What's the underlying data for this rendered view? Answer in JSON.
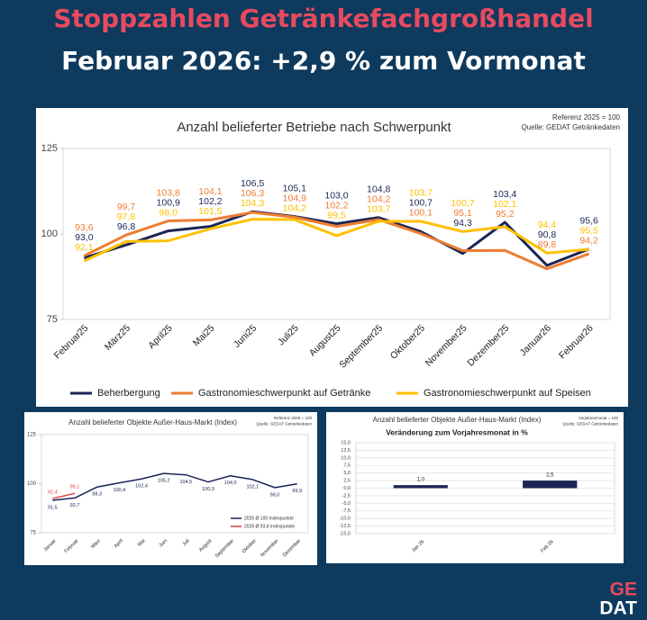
{
  "header": {
    "title": "Stoppzahlen Getränkefachgroßhandel",
    "subtitle": "Februar 2026: +2,9 % zum Vormonat"
  },
  "chart_data": [
    {
      "type": "line",
      "title": "Anzahl belieferter Betriebe nach Schwerpunkt",
      "note": "Referenz 2025 = 100",
      "source": "Quelle: GEDAT Getränkedaten",
      "categories": [
        "Februar25",
        "März25",
        "April25",
        "Mai25",
        "Juni25",
        "Juli25",
        "August25",
        "September25",
        "Oktober25",
        "November25",
        "Dezember25",
        "Januar26",
        "Februar26"
      ],
      "series": [
        {
          "name": "Beherbergung",
          "color": "#1b2556",
          "values": [
            93.0,
            96.8,
            100.9,
            102.2,
            106.5,
            105.1,
            103.0,
            104.8,
            100.7,
            94.3,
            103.4,
            90.8,
            95.6
          ],
          "value_labels": [
            "93,0",
            "96,8",
            "100,9",
            "102,2",
            "106,5",
            "105,1",
            "103,0",
            "104,8",
            "100,7",
            "94,3",
            "103,4",
            "90,8",
            "95,6"
          ]
        },
        {
          "name": "Gastronomieschwerpunkt auf Getränke",
          "color": "#ed7d31",
          "values": [
            93.6,
            99.7,
            103.8,
            104.1,
            106.3,
            104.9,
            102.2,
            104.2,
            100.1,
            95.1,
            95.2,
            89.8,
            94.2
          ],
          "value_labels": [
            "93,6",
            "99,7",
            "103,8",
            "104,1",
            "106,3",
            "104,9",
            "102,2",
            "104,2",
            "100,1",
            "95,1",
            "95,2",
            "89,8",
            "94,2"
          ]
        },
        {
          "name": "Gastronomieschwerpunkt auf Speisen",
          "color": "#ffc000",
          "values": [
            92.1,
            97.8,
            98.0,
            101.5,
            104.3,
            104.2,
            99.5,
            103.7,
            103.7,
            100.7,
            102.1,
            94.4,
            95.5
          ],
          "value_labels": [
            "92,1",
            "97,8",
            "98,0",
            "101,5",
            "104,3",
            "104,2",
            "99,5",
            "103,7",
            "103,7",
            "100,7",
            "102,1",
            "94,4",
            "95,5"
          ]
        }
      ],
      "ylim": [
        75,
        125
      ],
      "yticks": [
        75,
        100,
        125
      ],
      "grid": false,
      "legend": "bottom"
    },
    {
      "type": "line",
      "title": "Anzahl belieferter Objekte Außer-Haus-Markt (Index)",
      "note": "Referenz 2025 = 100",
      "source": "Quelle: GEDAT Getränkedaten",
      "categories": [
        "Januar",
        "Februar",
        "März",
        "April",
        "Mai",
        "Juni",
        "Juli",
        "August",
        "September",
        "Oktober",
        "November",
        "Dezember"
      ],
      "series": [
        {
          "name": "2025 Ø 100 Indexpunkte",
          "color": "#1b2556",
          "values": [
            91.5,
            92.7,
            98.3,
            100.4,
            102.4,
            105.2,
            104.5,
            100.9,
            104.0,
            102.1,
            98.0,
            99.9
          ],
          "value_labels": [
            "91,5",
            "92,7",
            "98,3",
            "100,4",
            "102,4",
            "105,2",
            "104,5",
            "100,9",
            "104,0",
            "102,1",
            "98,0",
            "99,9"
          ]
        },
        {
          "name": "2026 Ø 93,8 Indexpunkte",
          "color": "#e03a3a",
          "values": [
            92.4,
            95.1,
            null,
            null,
            null,
            null,
            null,
            null,
            null,
            null,
            null,
            null
          ],
          "value_labels": [
            "92,4",
            "95,1",
            null,
            null,
            null,
            null,
            null,
            null,
            null,
            null,
            null,
            null
          ]
        }
      ],
      "ylim": [
        75,
        125
      ],
      "yticks": [
        75,
        100,
        125
      ],
      "grid": false,
      "legend": "lower right"
    },
    {
      "type": "bar",
      "title": "Anzahl belieferter Objekte Außer-Haus-Markt (Index)",
      "subtitle": "Veränderung zum Vorjahresmonat in %",
      "note": "Vorjahresmonat = 100",
      "source": "Quelle: GEDAT Getränkedaten",
      "categories": [
        "Jan 26",
        "Feb 26"
      ],
      "values": [
        1.0,
        2.5
      ],
      "value_labels": [
        "1,0",
        "2,5"
      ],
      "color": "#1b2556",
      "ylim": [
        -15,
        15
      ],
      "yticks": [
        {
          "value": -15,
          "label": "-15,0"
        },
        {
          "value": -12.5,
          "label": "-12,5"
        },
        {
          "value": -10,
          "label": "-10,0"
        },
        {
          "value": -7.5,
          "label": "-7,5"
        },
        {
          "value": -5,
          "label": "-5,0"
        },
        {
          "value": -2.5,
          "label": "-2,5"
        },
        {
          "value": 0,
          "label": "0,0"
        },
        {
          "value": 2.5,
          "label": "2,5"
        },
        {
          "value": 5,
          "label": "5,0"
        },
        {
          "value": 7.5,
          "label": "7,5"
        },
        {
          "value": 10,
          "label": "10,0"
        },
        {
          "value": 12.5,
          "label": "12,5"
        },
        {
          "value": 15,
          "label": "15,0"
        }
      ],
      "grid": "y"
    }
  ],
  "logo": {
    "top": "GE",
    "bottom": "DAT"
  }
}
